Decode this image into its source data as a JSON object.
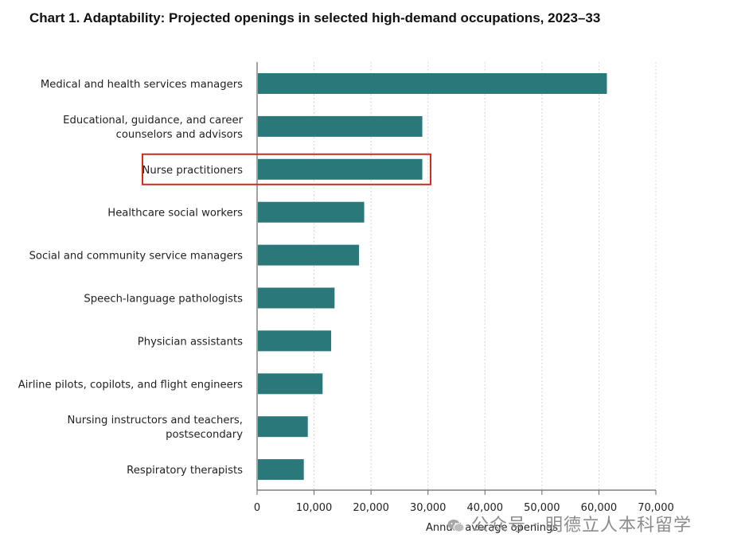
{
  "chart_data": {
    "type": "bar",
    "orientation": "horizontal",
    "title": "Chart 1. Adaptability: Projected openings in selected high-demand occupations, 2023–33",
    "xlabel": "Annual average openings",
    "ylabel": "",
    "xlim": [
      0,
      70000
    ],
    "xticks": [
      0,
      10000,
      20000,
      30000,
      40000,
      50000,
      60000,
      70000
    ],
    "xtick_labels": [
      "0",
      "10,000",
      "20,000",
      "30,000",
      "40,000",
      "50,000",
      "60,000",
      "70,000"
    ],
    "grid": "vertical-dotted",
    "bar_color": "#2b787b",
    "highlight_color": "#d42b1e",
    "highlighted_category": "Nurse practitioners",
    "categories": [
      [
        "Medical and health services managers"
      ],
      [
        "Educational, guidance, and career",
        "counselors and advisors"
      ],
      [
        "Nurse practitioners"
      ],
      [
        "Healthcare social workers"
      ],
      [
        "Social and community service managers"
      ],
      [
        "Speech-language pathologists"
      ],
      [
        "Physician assistants"
      ],
      [
        "Airline pilots, copilots, and flight engineers"
      ],
      [
        "Nursing instructors and teachers,",
        "postsecondary"
      ],
      [
        "Respiratory therapists"
      ]
    ],
    "values": [
      61400,
      29000,
      29000,
      18800,
      17900,
      13600,
      13000,
      11500,
      8900,
      8200
    ]
  },
  "watermark": {
    "text": "公众号 · 明德立人本科留学",
    "icon": "wechat-icon"
  }
}
